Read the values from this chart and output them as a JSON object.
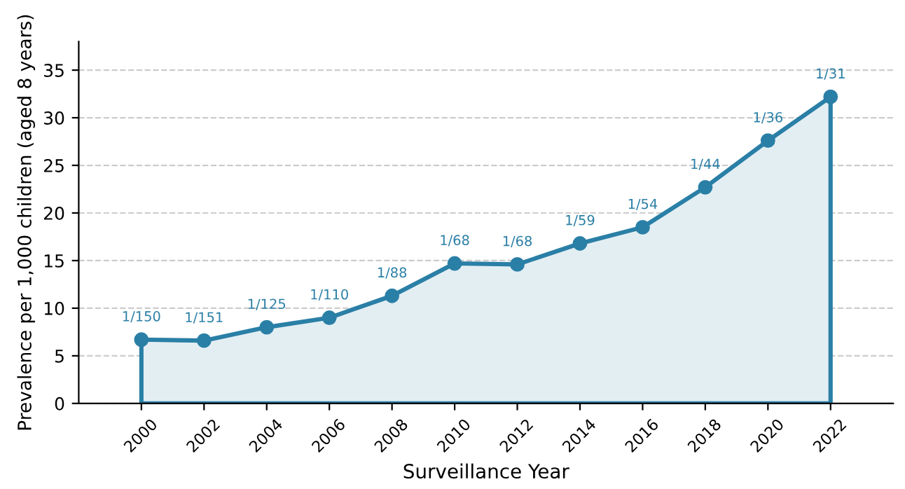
{
  "chart_data": {
    "type": "area",
    "xlabel": "Surveillance Year",
    "ylabel": "Prevalence per 1,000 children (aged 8 years)",
    "x": [
      2000,
      2002,
      2004,
      2006,
      2008,
      2010,
      2012,
      2014,
      2016,
      2018,
      2020,
      2022
    ],
    "series": [
      {
        "color": "#2a7fa6",
        "values": [
          6.7,
          6.6,
          8.0,
          9.0,
          11.3,
          14.7,
          14.6,
          16.8,
          18.5,
          22.7,
          27.6,
          32.2
        ],
        "value_labels": [
          "1/150",
          "1/151",
          "1/125",
          "1/110",
          "1/88",
          "1/68",
          "1/68",
          "1/59",
          "1/54",
          "1/44",
          "1/36",
          "1/31"
        ]
      }
    ],
    "xlim": [
      1998,
      2024
    ],
    "xticks": [
      2000,
      2002,
      2004,
      2006,
      2008,
      2010,
      2012,
      2014,
      2016,
      2018,
      2020,
      2022
    ],
    "ylim": [
      0,
      38
    ],
    "yticks": [
      0,
      5,
      10,
      15,
      20,
      25,
      30,
      35
    ],
    "grid": "y",
    "marker": "circle",
    "line_style": "solid"
  }
}
